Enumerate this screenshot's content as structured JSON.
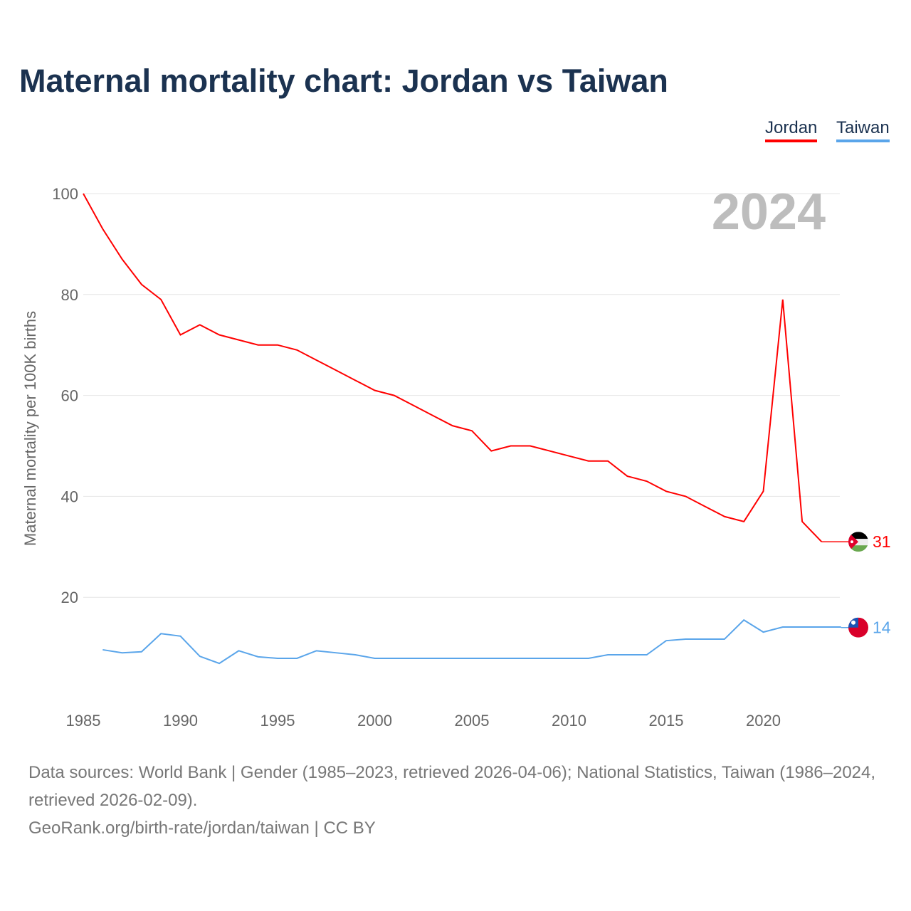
{
  "title": "Maternal mortality chart: Jordan vs Taiwan",
  "source_line1": "Data sources: World Bank | Gender (1985–2023, retrieved 2026-04-06); National Statistics, Taiwan (1986–2024, retrieved 2026-02-09).",
  "source_line2": "GeoRank.org/birth-rate/jordan/taiwan | CC BY",
  "chart_data": {
    "type": "line",
    "title": "Maternal mortality chart: Jordan vs Taiwan",
    "ylabel": "Maternal mortality per 100K births",
    "xlabel": "",
    "year_label": "2024",
    "ylim": [
      0,
      100
    ],
    "xlim": [
      1985,
      2024
    ],
    "yticks": [
      20,
      40,
      60,
      80,
      100
    ],
    "xticks": [
      1985,
      1990,
      1995,
      2000,
      2005,
      2010,
      2015,
      2020
    ],
    "grid": true,
    "legend": "top-right",
    "series": [
      {
        "name": "Jordan",
        "color": "#ff0000",
        "end_label": "31",
        "end_value": 31,
        "x": [
          1985,
          1986,
          1987,
          1988,
          1989,
          1990,
          1991,
          1992,
          1993,
          1994,
          1995,
          1996,
          1997,
          1998,
          1999,
          2000,
          2001,
          2002,
          2003,
          2004,
          2005,
          2006,
          2007,
          2008,
          2009,
          2010,
          2011,
          2012,
          2013,
          2014,
          2015,
          2016,
          2017,
          2018,
          2019,
          2020,
          2021,
          2022,
          2023
        ],
        "values": [
          100,
          93,
          87,
          82,
          79,
          72,
          74,
          72,
          71,
          70,
          70,
          69,
          67,
          65,
          63,
          61,
          60,
          58,
          56,
          54,
          53,
          49,
          50,
          50,
          49,
          48,
          47,
          47,
          44,
          43,
          41,
          40,
          38,
          36,
          35,
          41,
          79,
          35,
          31
        ]
      },
      {
        "name": "Taiwan",
        "color": "#5aa5ea",
        "end_label": "14",
        "end_value": 14,
        "x": [
          1986,
          1987,
          1988,
          1989,
          1990,
          1991,
          1992,
          1993,
          1994,
          1995,
          1996,
          1997,
          1998,
          1999,
          2000,
          2001,
          2002,
          2003,
          2004,
          2005,
          2006,
          2007,
          2008,
          2009,
          2010,
          2011,
          2012,
          2013,
          2014,
          2015,
          2016,
          2017,
          2018,
          2019,
          2020,
          2021,
          2022,
          2023,
          2024
        ],
        "values": [
          9.6,
          9.0,
          9.2,
          12.8,
          12.3,
          8.3,
          6.9,
          9.4,
          8.2,
          7.9,
          7.9,
          9.4,
          9.0,
          8.6,
          7.9,
          7.9,
          7.9,
          7.9,
          7.9,
          7.9,
          7.9,
          7.9,
          7.9,
          7.9,
          7.9,
          7.9,
          8.6,
          8.6,
          8.6,
          11.4,
          11.7,
          11.7,
          11.7,
          15.5,
          13.1,
          14.1,
          14.1,
          14.1,
          14.1
        ]
      }
    ]
  }
}
